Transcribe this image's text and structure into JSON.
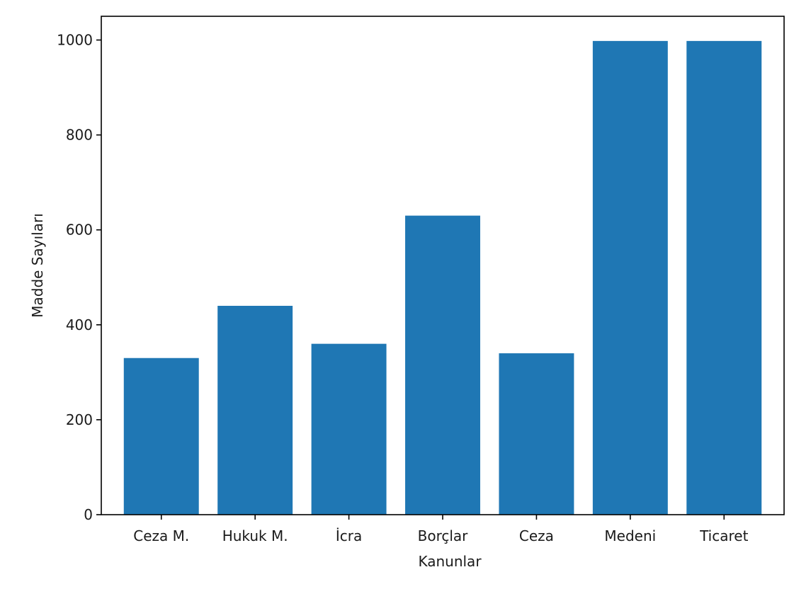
{
  "chart_data": {
    "type": "bar",
    "categories": [
      "Ceza M.",
      "Hukuk M.",
      "İcra",
      "Borçlar",
      "Ceza",
      "Medeni",
      "Ticaret"
    ],
    "values": [
      330,
      440,
      360,
      630,
      340,
      998,
      998
    ],
    "title": "",
    "xlabel": "Kanunlar",
    "ylabel": "Madde Sayıları",
    "ylim": [
      0,
      1050
    ],
    "yticks": [
      0,
      200,
      400,
      600,
      800,
      1000
    ],
    "grid": false,
    "legend": "none",
    "colors": {
      "bar": "#1f77b4",
      "axis": "#000000",
      "text": "#1a1a1a"
    }
  }
}
